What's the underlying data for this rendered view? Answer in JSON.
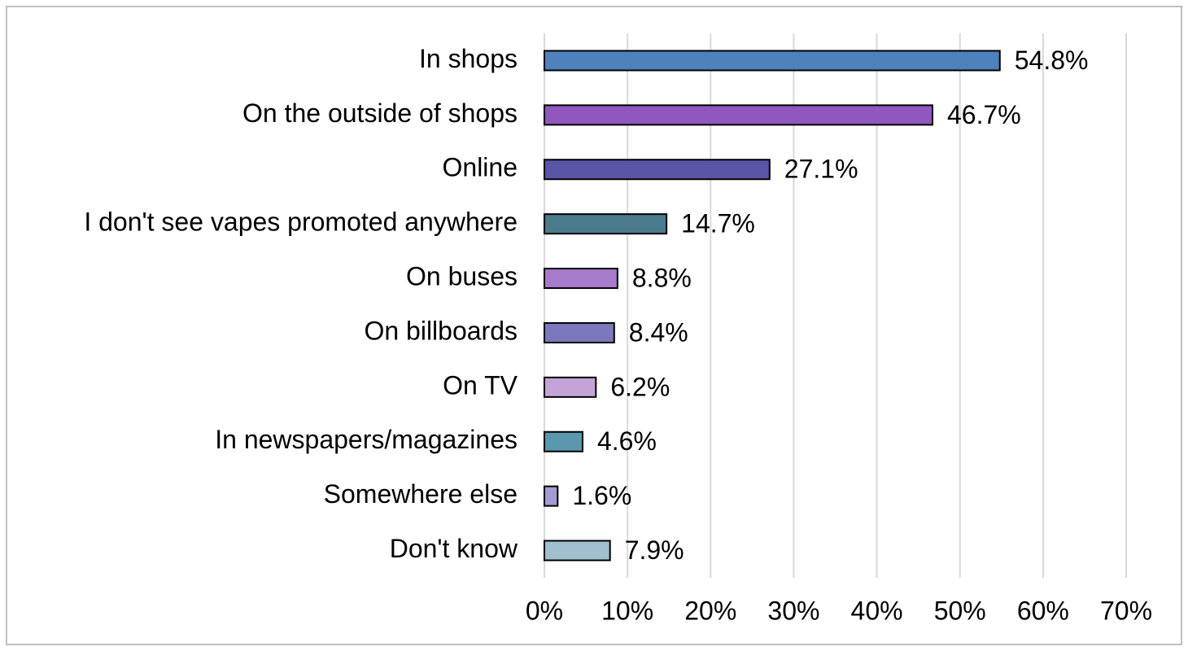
{
  "chart_data": {
    "type": "hbar",
    "categories": [
      "In shops",
      "On the outside of shops",
      "Online",
      "I don't see vapes promoted anywhere",
      "On buses",
      "On billboards",
      "On TV",
      "In newspapers/magazines",
      "Somewhere else",
      "Don't know"
    ],
    "values": [
      54.8,
      46.7,
      27.1,
      14.7,
      8.8,
      8.4,
      6.2,
      4.6,
      1.6,
      7.9
    ],
    "value_labels": [
      "54.8%",
      "46.7%",
      "27.1%",
      "14.7%",
      "8.8%",
      "8.4%",
      "6.2%",
      "4.6%",
      "1.6%",
      "7.9%"
    ],
    "colors": [
      "#4f81bd",
      "#9057bf",
      "#5b55a8",
      "#4a7a8c",
      "#a87acb",
      "#7b78bd",
      "#c4a4d6",
      "#5b97ad",
      "#a49bd0",
      "#9fc0cc"
    ],
    "xlim": [
      0,
      70
    ],
    "xticks": [
      {
        "value": 0,
        "label": "0%"
      },
      {
        "value": 10,
        "label": "10%"
      },
      {
        "value": 20,
        "label": "20%"
      },
      {
        "value": 30,
        "label": "30%"
      },
      {
        "value": 40,
        "label": "40%"
      },
      {
        "value": 50,
        "label": "50%"
      },
      {
        "value": 60,
        "label": "60%"
      },
      {
        "value": 70,
        "label": "70%"
      }
    ],
    "grid": true
  }
}
